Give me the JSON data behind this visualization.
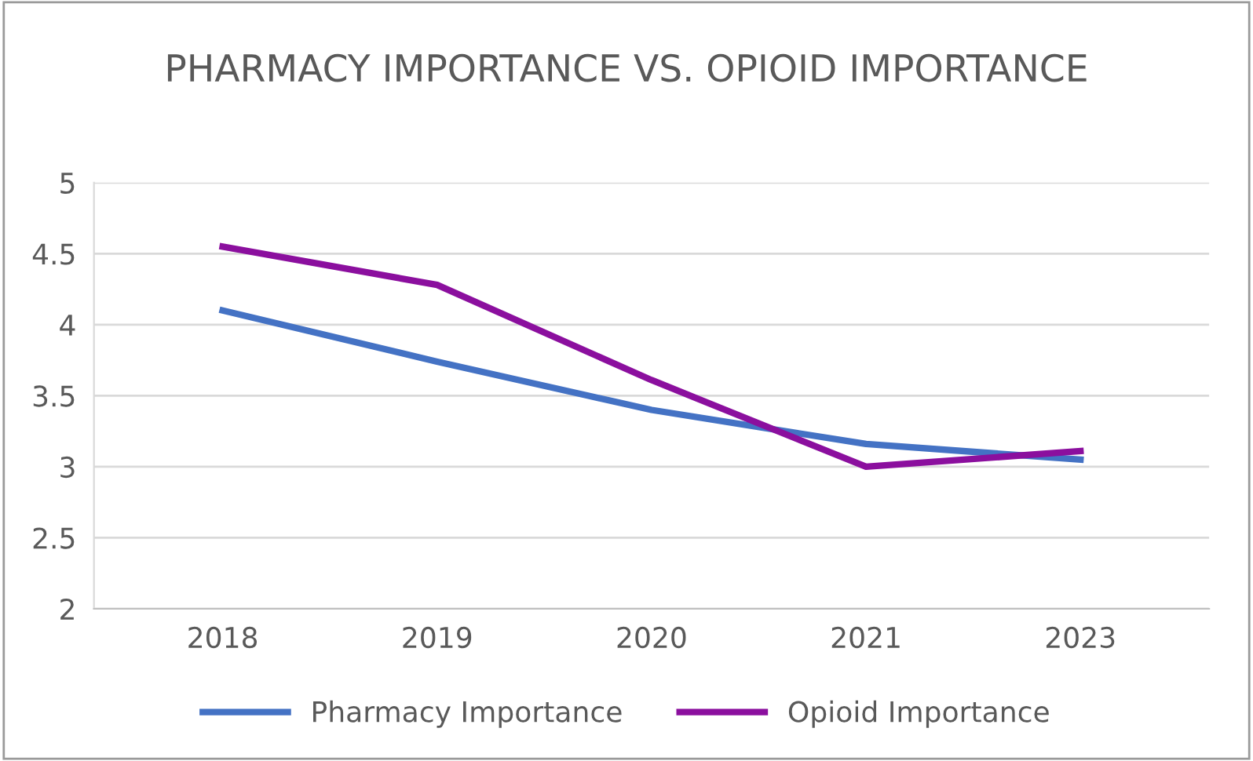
{
  "chart_data": {
    "type": "line",
    "title": "PHARMACY IMPORTANCE VS. OPIOID IMPORTANCE",
    "categories": [
      "2018",
      "2019",
      "2020",
      "2021",
      "2023"
    ],
    "series": [
      {
        "name": "Pharmacy Importance",
        "color": "#4472c4",
        "values": [
          4.1,
          3.74,
          3.4,
          3.16,
          3.05
        ]
      },
      {
        "name": "Opioid Importance",
        "color": "#8b0f9e",
        "values": [
          4.55,
          4.28,
          3.61,
          3.0,
          3.11
        ]
      }
    ],
    "ylim": [
      2,
      5
    ],
    "yticks": [
      2,
      2.5,
      3,
      3.5,
      4,
      4.5,
      5
    ],
    "grid": "y",
    "legend": "bottom",
    "marker": "none",
    "line_style": "solid"
  }
}
